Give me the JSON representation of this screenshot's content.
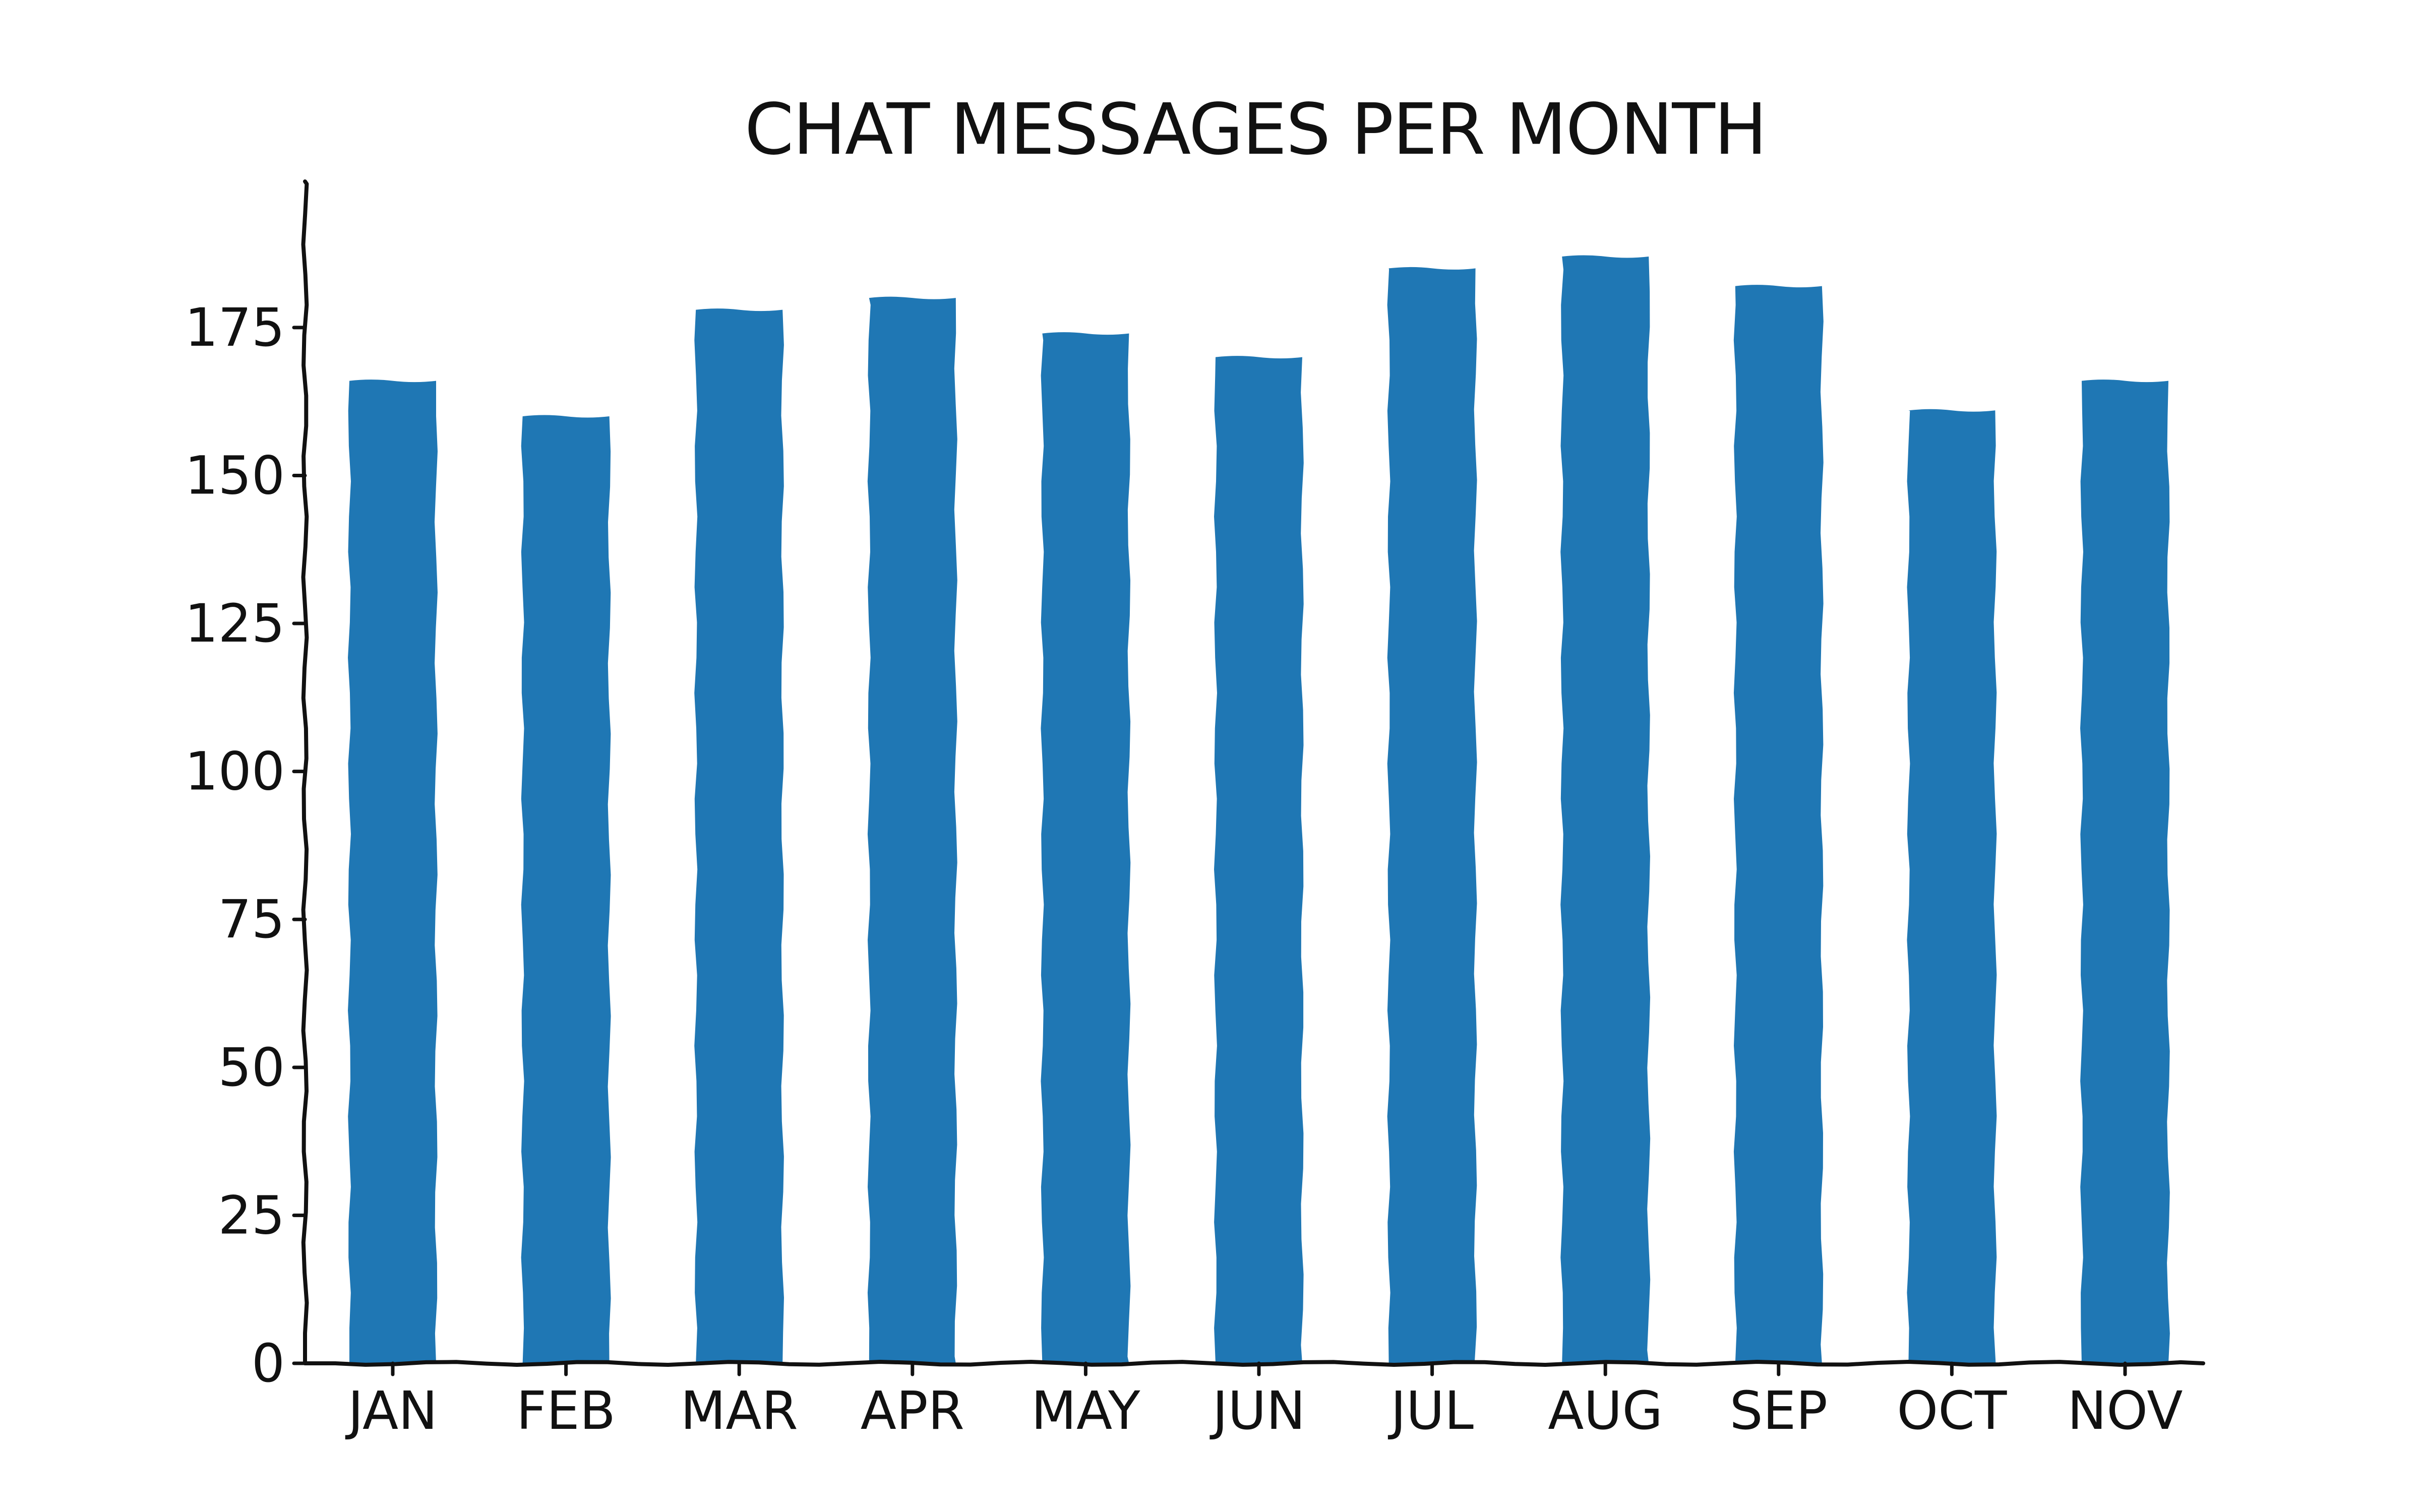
{
  "chart_data": {
    "type": "bar",
    "title": "CHAT MESSAGES PER MONTH",
    "xlabel": "",
    "ylabel": "",
    "categories": [
      "JAN",
      "FEB",
      "MAR",
      "APR",
      "MAY",
      "JUN",
      "JUL",
      "AUG",
      "SEP",
      "OCT",
      "NOV"
    ],
    "values": [
      166,
      160,
      178,
      180,
      174,
      170,
      185,
      187,
      182,
      161,
      166
    ],
    "ylim": [
      0,
      195
    ],
    "yticks": [
      "0",
      "25",
      "50",
      "75",
      "100",
      "125",
      "150",
      "175"
    ],
    "grid": false,
    "bar_color": "#1f77b4",
    "axis_color": "#111111"
  }
}
